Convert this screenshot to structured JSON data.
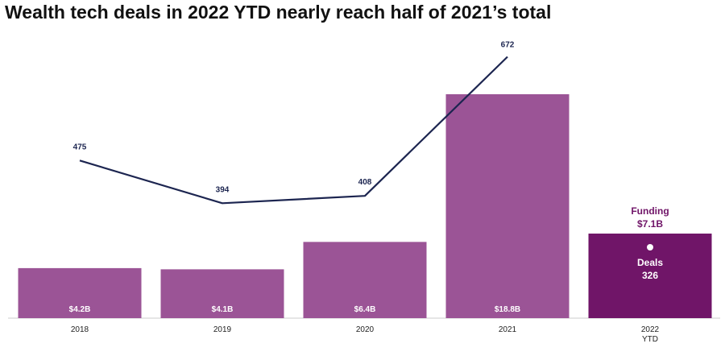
{
  "title": "Wealth tech deals in 2022 YTD nearly reach half of 2021’s total",
  "colors": {
    "bar": "#9b5496",
    "bar_ytd": "#701568",
    "line": "#1c2550",
    "ytd_label": "#701568"
  },
  "chart_data": {
    "type": "bar",
    "categories": [
      "2018",
      "2019",
      "2020",
      "2021",
      "2022 YTD"
    ],
    "series": [
      {
        "values": [
          4.2,
          4.1,
          6.4,
          18.8,
          7.1
        ],
        "labels": [
          "$4.2B",
          "$4.1B",
          "$6.4B",
          "$18.8B",
          "$7.1B"
        ]
      },
      {
        "type": "line",
        "values": [
          475,
          394,
          408,
          672,
          326
        ],
        "labels": [
          "475",
          "394",
          "408",
          "672",
          "326"
        ]
      }
    ],
    "ytd_callout": {
      "funding_label": "Funding",
      "funding_value": "$7.1B",
      "deals_label": "Deals",
      "deals_value": "326"
    },
    "tick_labels": [
      [
        "2018"
      ],
      [
        "2019"
      ],
      [
        "2020"
      ],
      [
        "2021"
      ],
      [
        "2022",
        "YTD"
      ]
    ],
    "grid": false,
    "legend": "none"
  }
}
